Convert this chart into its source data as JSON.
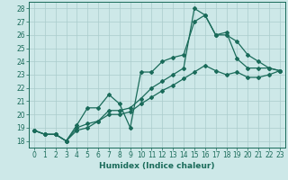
{
  "xlabel": "Humidex (Indice chaleur)",
  "ylabel": "",
  "xlim": [
    -0.5,
    23.5
  ],
  "ylim": [
    17.5,
    28.5
  ],
  "yticks": [
    18,
    19,
    20,
    21,
    22,
    23,
    24,
    25,
    26,
    27,
    28
  ],
  "xticks": [
    0,
    1,
    2,
    3,
    4,
    5,
    6,
    7,
    8,
    9,
    10,
    11,
    12,
    13,
    14,
    15,
    16,
    17,
    18,
    19,
    20,
    21,
    22,
    23
  ],
  "xtick_labels": [
    "0",
    "1",
    "2",
    "3",
    "4",
    "5",
    "6",
    "7",
    "8",
    "9",
    "10",
    "11",
    "12",
    "13",
    "14",
    "15",
    "16",
    "17",
    "18",
    "19",
    "20",
    "21",
    "22",
    "23"
  ],
  "background_color": "#cde8e8",
  "grid_color": "#aacccc",
  "line_color": "#1a6b5a",
  "line1_x": [
    0,
    1,
    2,
    3,
    4,
    5,
    6,
    7,
    8,
    9,
    10,
    11,
    12,
    13,
    14,
    15,
    16,
    17,
    18,
    19,
    20,
    21,
    22,
    23
  ],
  "line1_y": [
    18.8,
    18.5,
    18.5,
    18.0,
    19.2,
    20.5,
    20.5,
    21.5,
    20.8,
    19.0,
    23.2,
    23.2,
    24.0,
    24.3,
    24.5,
    27.0,
    27.5,
    26.0,
    26.2,
    24.2,
    23.5,
    23.5,
    23.5,
    23.3
  ],
  "line2_x": [
    0,
    1,
    2,
    3,
    4,
    5,
    6,
    7,
    8,
    9,
    10,
    11,
    12,
    13,
    14,
    15,
    16,
    17,
    18,
    19,
    20,
    21,
    22,
    23
  ],
  "line2_y": [
    18.8,
    18.5,
    18.5,
    18.0,
    19.0,
    19.3,
    19.5,
    20.3,
    20.3,
    20.5,
    21.2,
    22.0,
    22.5,
    23.0,
    23.5,
    28.0,
    27.5,
    26.0,
    26.0,
    25.5,
    24.5,
    24.0,
    23.5,
    23.3
  ],
  "line3_x": [
    0,
    1,
    2,
    3,
    4,
    5,
    6,
    7,
    8,
    9,
    10,
    11,
    12,
    13,
    14,
    15,
    16,
    17,
    18,
    19,
    20,
    21,
    22,
    23
  ],
  "line3_y": [
    18.8,
    18.5,
    18.5,
    18.0,
    18.8,
    19.0,
    19.5,
    20.0,
    20.0,
    20.2,
    20.8,
    21.3,
    21.8,
    22.2,
    22.7,
    23.2,
    23.7,
    23.3,
    23.0,
    23.2,
    22.8,
    22.8,
    23.0,
    23.3
  ],
  "marker": "D",
  "marker_size": 2.0,
  "line_width": 0.9,
  "font_size_ticks": 5.5,
  "font_size_xlabel": 6.5
}
